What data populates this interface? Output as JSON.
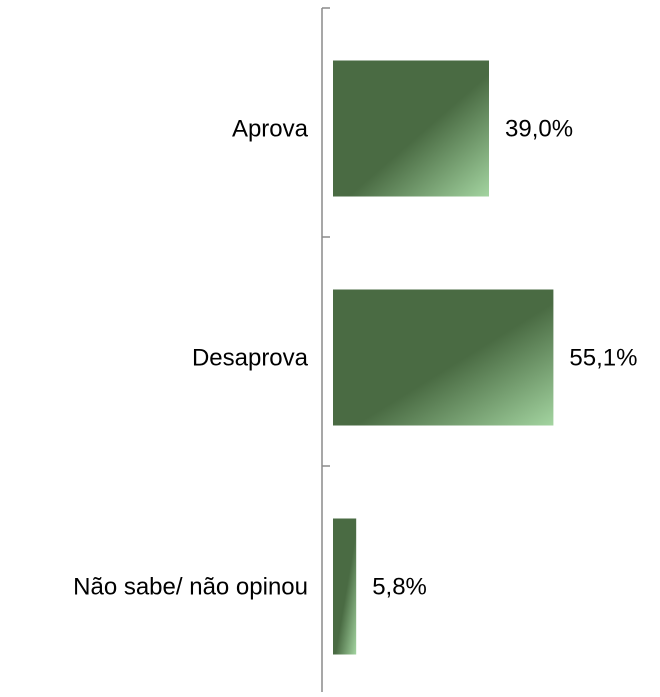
{
  "chart_data": {
    "type": "bar",
    "orientation": "horizontal",
    "categories": [
      "Aprova",
      "Desaprova",
      "Não sabe/ não opinou"
    ],
    "values": [
      39.0,
      55.1,
      5.8
    ],
    "value_labels": [
      "39,0%",
      "55,1%",
      "5,8%"
    ],
    "unit": "%",
    "xlim": [
      0,
      70
    ],
    "grid": false,
    "legend": "none",
    "bar_color": "#4a6b43",
    "bar_highlight_color": "#a3d4a0",
    "axis_color": "#8a8a8a"
  }
}
